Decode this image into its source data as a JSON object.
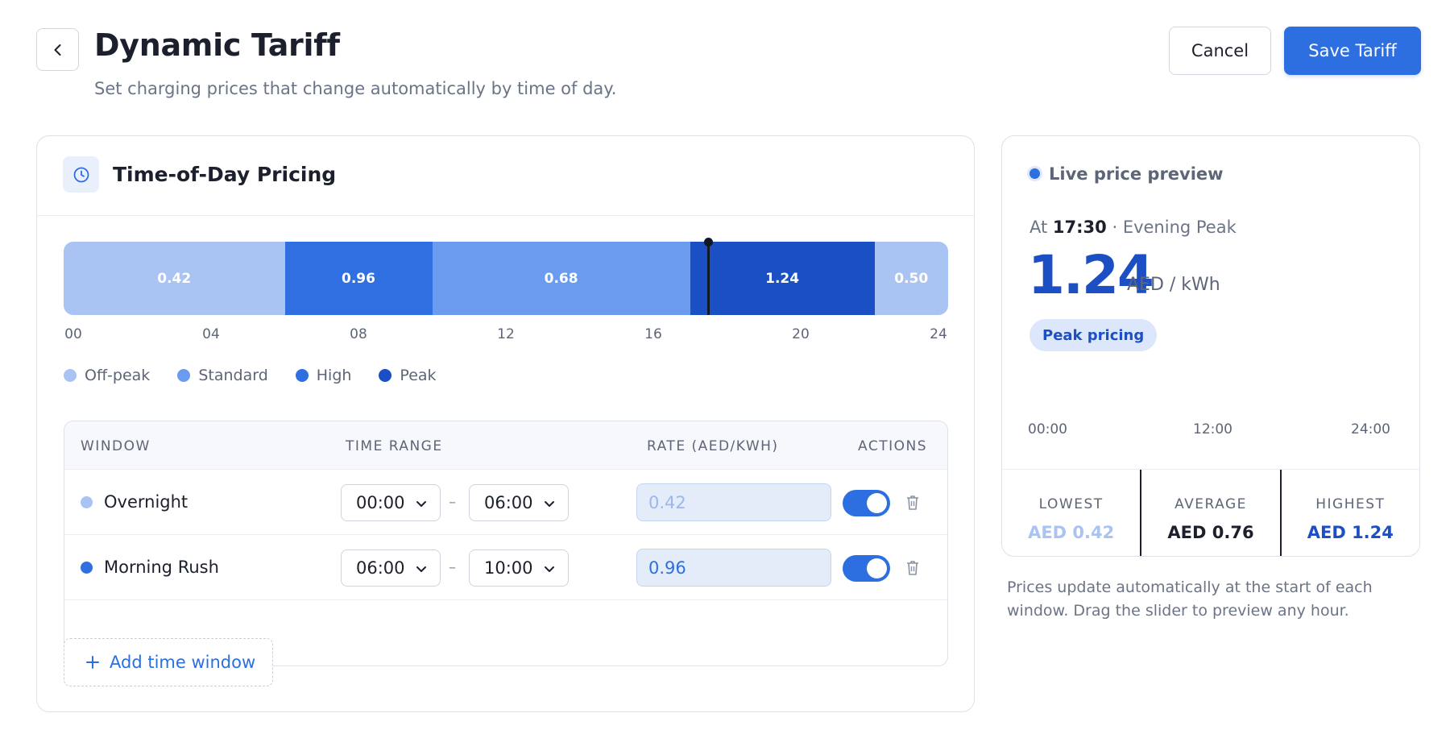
{
  "header": {
    "title": "Dynamic Tariff",
    "subtitle": "Set charging prices that change automatically by time of day.",
    "cancel_label": "Cancel",
    "save_label": "Save Tariff"
  },
  "pricing_card": {
    "title": "Time-of-Day Pricing",
    "timeline": {
      "segments": [
        {
          "start": 0,
          "end": 6,
          "rate": "0.42",
          "tier": "off-peak"
        },
        {
          "start": 6,
          "end": 10,
          "rate": "0.96",
          "tier": "high"
        },
        {
          "start": 10,
          "end": 17,
          "rate": "0.68",
          "tier": "standard"
        },
        {
          "start": 17,
          "end": 22,
          "rate": "1.24",
          "tier": "peak"
        },
        {
          "start": 22,
          "end": 24,
          "rate": "0.50",
          "tier": "off-peak"
        }
      ],
      "marker_hour": 17.5,
      "hour_labels": [
        "00",
        "04",
        "08",
        "12",
        "16",
        "20",
        "24"
      ]
    },
    "legend": [
      {
        "label": "Off-peak",
        "color": "#a9c3f3"
      },
      {
        "label": "Standard",
        "color": "#6b9bee"
      },
      {
        "label": "High",
        "color": "#2f6fe1"
      },
      {
        "label": "Peak",
        "color": "#1b4fc4"
      }
    ],
    "table": {
      "headers": {
        "window": "WINDOW",
        "time_range": "TIME RANGE",
        "rate": "RATE (AED/KWH)",
        "actions": "ACTIONS"
      },
      "rows": [
        {
          "name": "Overnight",
          "dot_color": "#a9c3f3",
          "start": "00:00",
          "end": "06:00",
          "rate": "0.42",
          "rate_color": "#9db7e8",
          "enabled": true
        },
        {
          "name": "Morning Rush",
          "dot_color": "#2f6fe1",
          "start": "06:00",
          "end": "10:00",
          "rate": "0.96",
          "rate_color": "#2d6ee0",
          "enabled": true
        }
      ],
      "separator": "–"
    },
    "add_label": "Add time window"
  },
  "preview": {
    "title": "Live price preview",
    "at_prefix": "At",
    "time": "17:30",
    "window_name": "· Evening Peak",
    "price": "1.24",
    "unit": "AED / kWh",
    "badge": "Peak pricing",
    "axis_labels": [
      "00:00",
      "12:00",
      "24:00"
    ],
    "stats": [
      {
        "label": "LOWEST",
        "value": "AED 0.42",
        "color": "#a9c3f3"
      },
      {
        "label": "AVERAGE",
        "value": "AED 0.76",
        "color": "#1b202c"
      },
      {
        "label": "HIGHEST",
        "value": "AED 1.24",
        "color": "#1d4fc4"
      }
    ],
    "note": "Prices update automatically at the start of each window. Drag the slider to preview any hour."
  },
  "colors": {
    "off-peak": "#a9c3f3",
    "standard": "#6b9bee",
    "high": "#2f6fe1",
    "peak": "#1b4fc4",
    "accent": "#2d6ee0"
  },
  "icons": {
    "back": "chevron-left-icon",
    "clock": "clock-icon",
    "chevron": "chevron-down-icon",
    "trash": "trash-icon",
    "plus": "plus-icon"
  }
}
